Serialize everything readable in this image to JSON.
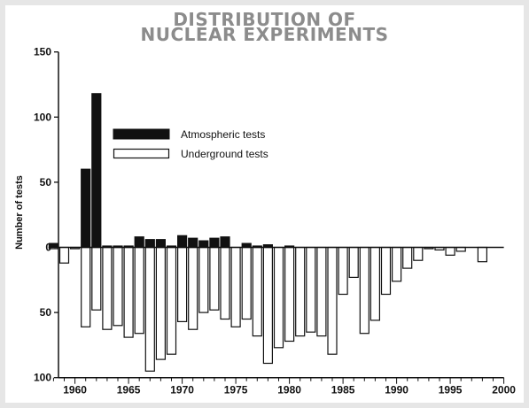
{
  "chart_data": {
    "type": "bar",
    "title_lines": [
      "DISTRIBUTION OF",
      "NUCLEAR EXPERIMENTS"
    ],
    "xlabel": "",
    "ylabel": "Number of tests",
    "xlim": [
      1958,
      2000
    ],
    "ylim": [
      -100,
      150
    ],
    "y_ticks": [
      {
        "value": 150,
        "label": "150"
      },
      {
        "value": 100,
        "label": "100"
      },
      {
        "value": 50,
        "label": "50"
      },
      {
        "value": 0,
        "label": "0"
      },
      {
        "value": -50,
        "label": "50"
      },
      {
        "value": -100,
        "label": "100"
      }
    ],
    "x_ticks": [
      1960,
      1965,
      1970,
      1975,
      1980,
      1985,
      1990,
      1995,
      2000
    ],
    "grid": false,
    "legend_position": "upper-left",
    "series": [
      {
        "name": "Atmospheric tests",
        "color": "#111111",
        "x": [
          1958,
          1959,
          1961,
          1962,
          1963,
          1964,
          1965,
          1966,
          1967,
          1968,
          1969,
          1970,
          1971,
          1972,
          1973,
          1974,
          1975,
          1976,
          1977,
          1978,
          1979,
          1980
        ],
        "values": [
          3,
          0,
          60,
          118,
          1,
          1,
          1,
          8,
          6,
          6,
          1,
          9,
          7,
          5,
          7,
          8,
          0,
          3,
          1,
          2,
          0,
          1
        ]
      },
      {
        "name": "Underground tests",
        "color": "#ffffff",
        "x": [
          1958,
          1959,
          1960,
          1961,
          1962,
          1963,
          1964,
          1965,
          1966,
          1967,
          1968,
          1969,
          1970,
          1971,
          1972,
          1973,
          1974,
          1975,
          1976,
          1977,
          1978,
          1979,
          1980,
          1981,
          1982,
          1983,
          1984,
          1985,
          1986,
          1987,
          1988,
          1989,
          1990,
          1991,
          1992,
          1993,
          1994,
          1995,
          1996,
          1997,
          1998
        ],
        "values": [
          -1,
          -12,
          -1,
          -61,
          -48,
          -63,
          -60,
          -69,
          -66,
          -95,
          -86,
          -82,
          -57,
          -63,
          -50,
          -48,
          -55,
          -61,
          -55,
          -68,
          -89,
          -77,
          -72,
          -68,
          -65,
          -68,
          -82,
          -36,
          -23,
          -66,
          -56,
          -36,
          -26,
          -16,
          -10,
          -1,
          -2,
          -6,
          -3,
          0,
          -11
        ]
      }
    ]
  }
}
